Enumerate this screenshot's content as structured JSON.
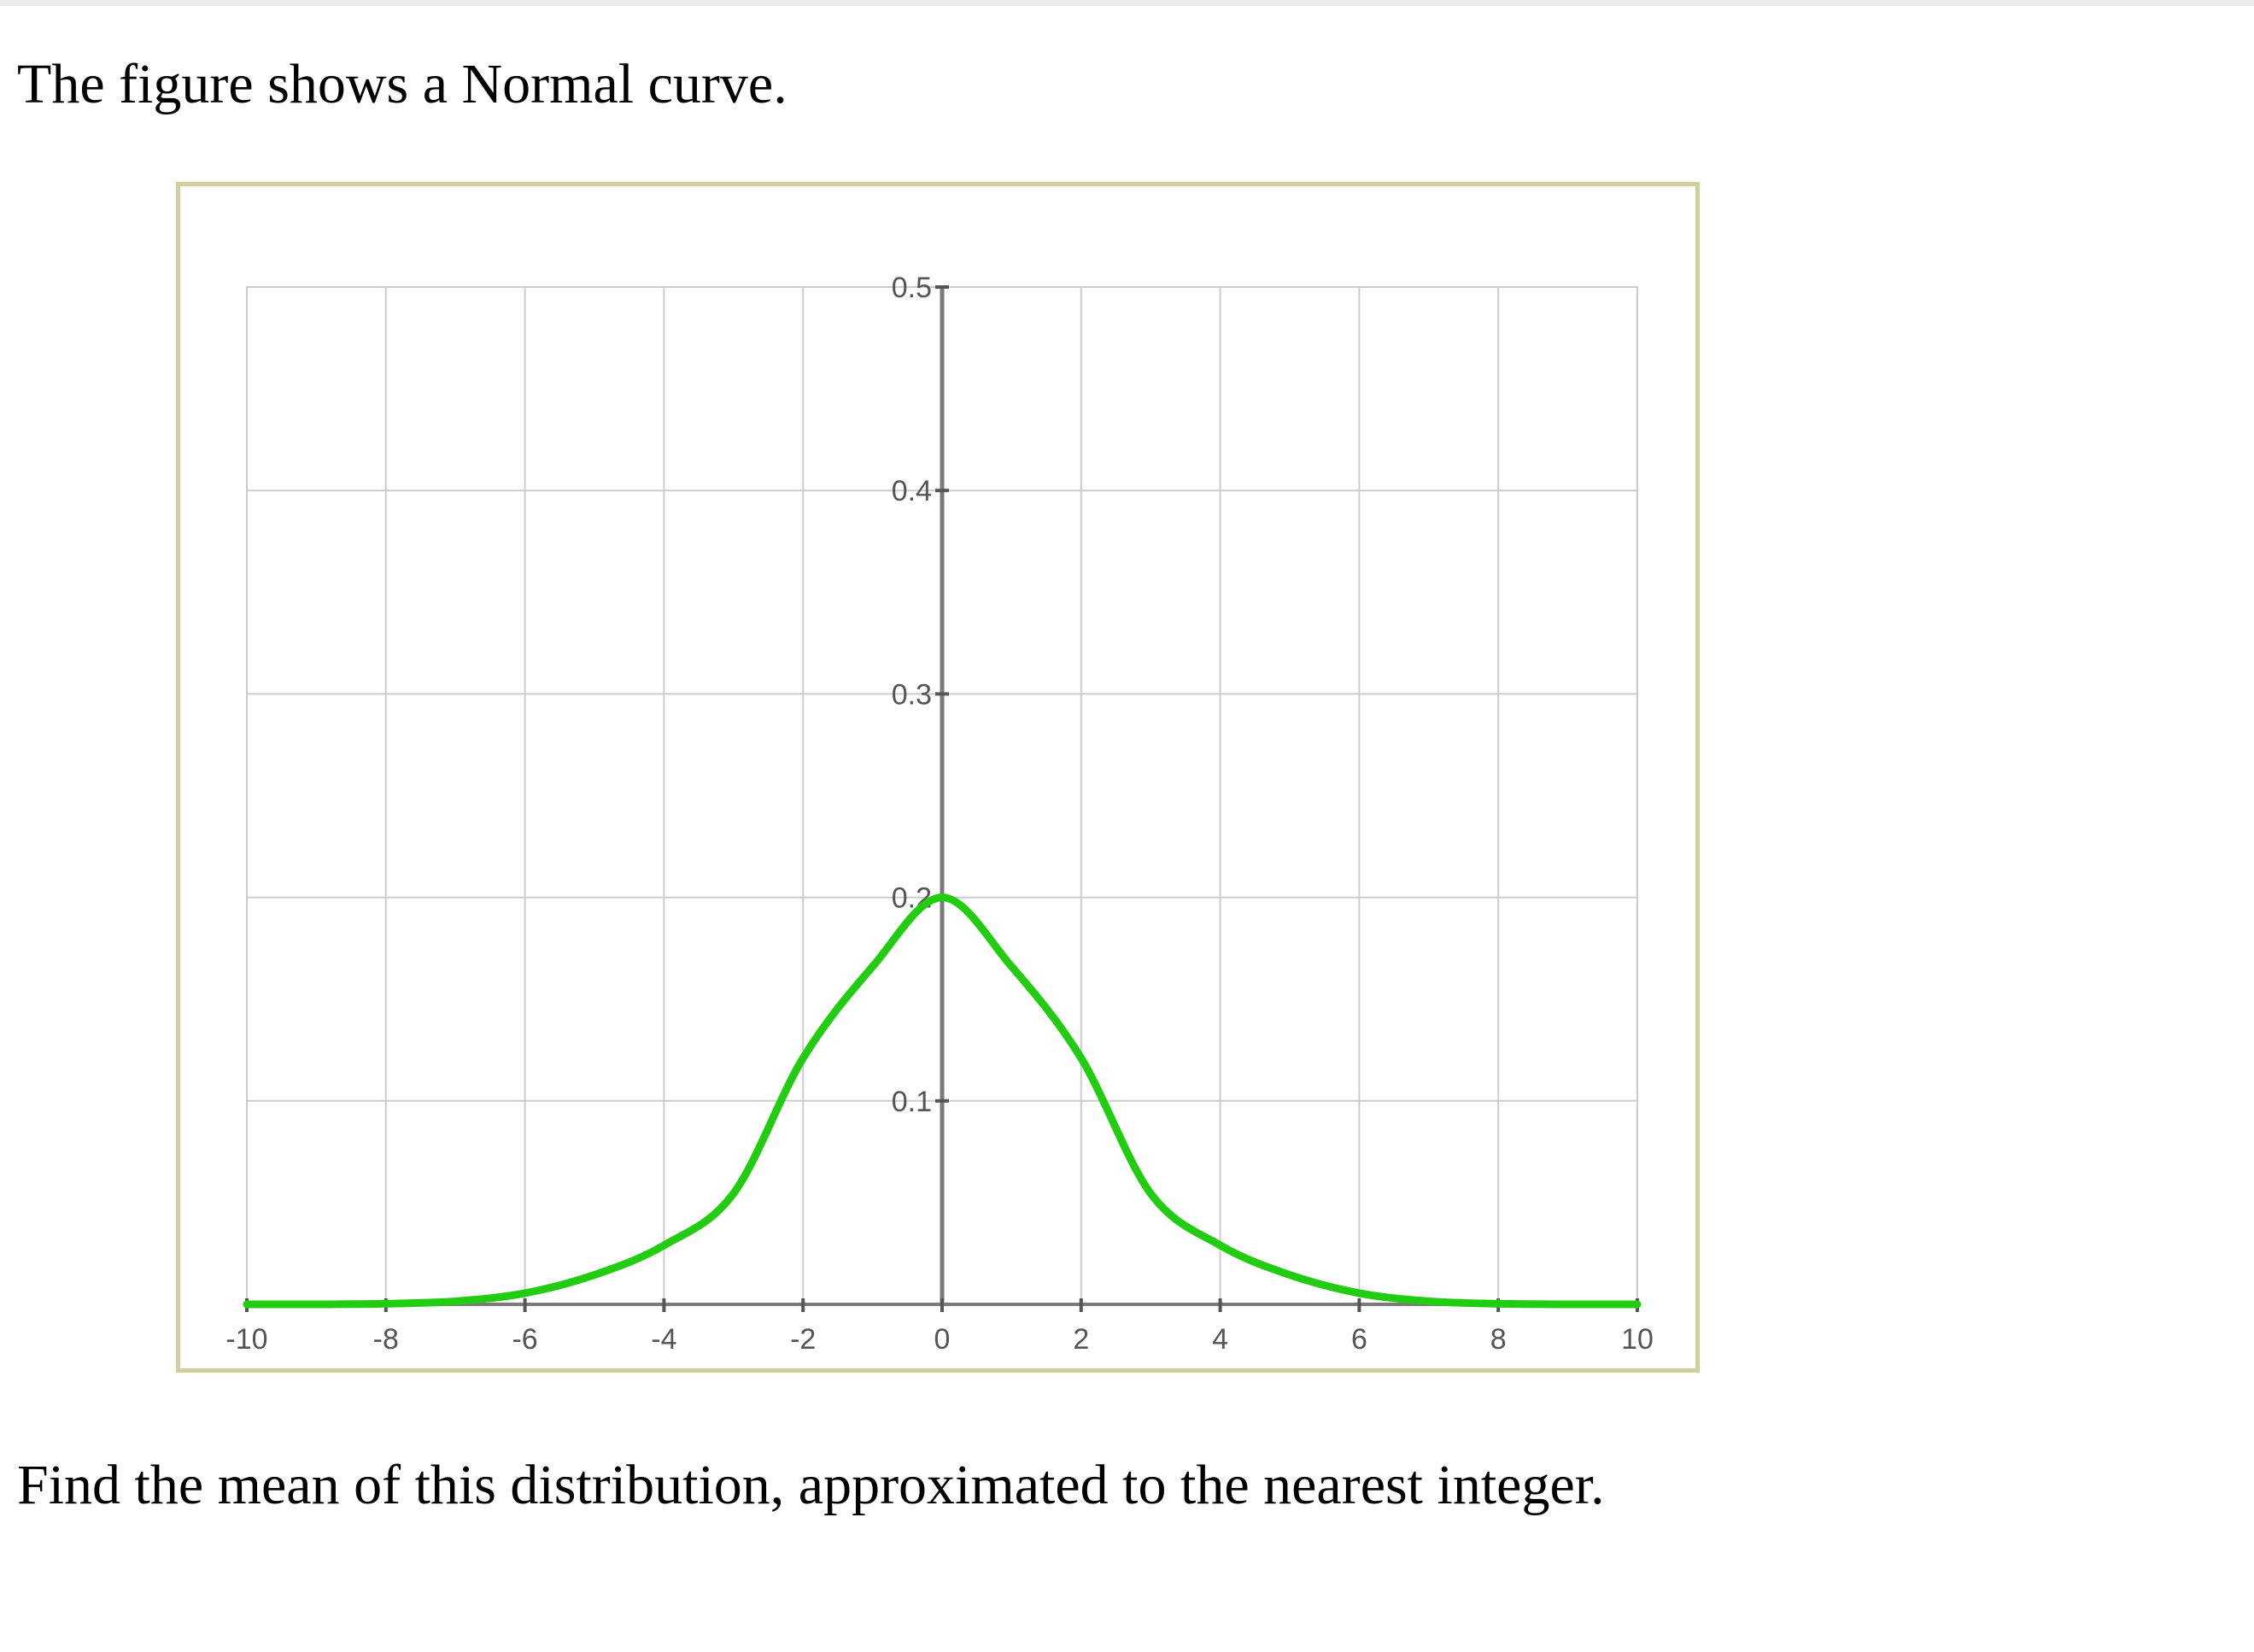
{
  "question": {
    "intro": "The figure shows a Normal curve.",
    "prompt": "Find the mean of this distribution, approximated to the nearest integer."
  },
  "colors": {
    "curve": "#22cc11",
    "grid": "#cccccc",
    "axis": "#7a7a7a",
    "frame": "#d2cf9f",
    "tick_label": "#555555"
  },
  "chart_data": {
    "type": "line",
    "title": "",
    "xlabel": "",
    "ylabel": "",
    "xlim": [
      -10,
      10
    ],
    "ylim": [
      0,
      0.5
    ],
    "x_ticks": [
      -10,
      -8,
      -6,
      -4,
      -2,
      0,
      2,
      4,
      6,
      8,
      10
    ],
    "x_tick_labels": [
      "-10",
      "-8",
      "-6",
      "-4",
      "-2",
      "0",
      "2",
      "4",
      "6",
      "8",
      "10"
    ],
    "y_ticks": [
      0.1,
      0.2,
      0.3,
      0.4,
      0.5
    ],
    "y_tick_labels": [
      "0.1",
      "0.2",
      "0.3",
      "0.4",
      "0.5"
    ],
    "grid": true,
    "legend": "none",
    "series": [
      {
        "x": [
          -10,
          -9,
          -8,
          -7,
          -6,
          -5,
          -4,
          -3,
          -2,
          -1,
          0,
          1,
          2,
          3,
          4,
          5,
          6,
          7,
          8,
          9,
          10
        ],
        "y": [
          0.0,
          0.0,
          0.0003,
          0.0015,
          0.0055,
          0.0145,
          0.029,
          0.0545,
          0.121,
          0.166,
          0.2,
          0.166,
          0.121,
          0.0545,
          0.029,
          0.0145,
          0.0055,
          0.0015,
          0.0003,
          0.0,
          0.0
        ]
      }
    ]
  }
}
